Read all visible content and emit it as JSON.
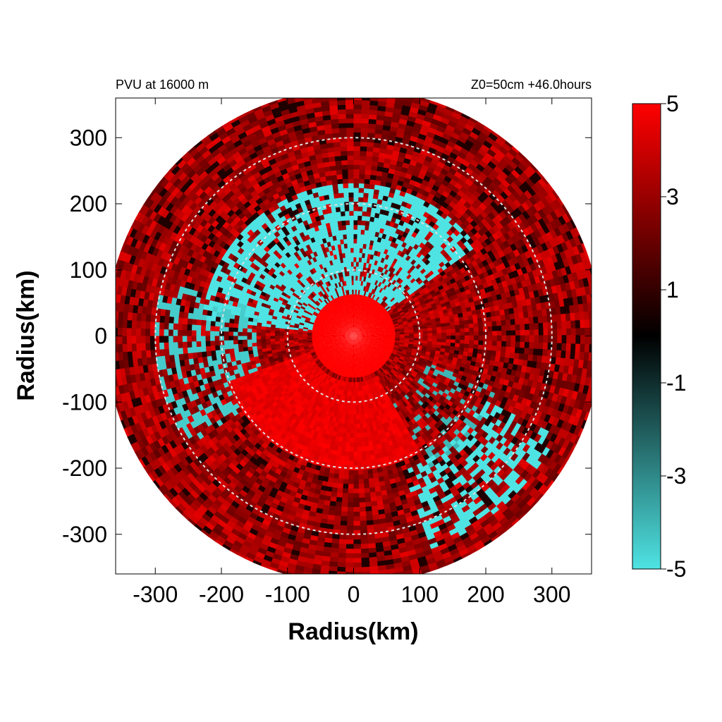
{
  "chart_data": {
    "type": "heatmap",
    "title": "PVU at 16000 m",
    "subtitle": "Z0=50cm  +46.0hours",
    "xlabel": "Radius(km)",
    "ylabel": "Radius(km)",
    "xlim": [
      -360,
      360
    ],
    "ylim": [
      -360,
      360
    ],
    "xticks": [
      "-300",
      "-200",
      "-100",
      "0",
      "100",
      "200",
      "300"
    ],
    "yticks": [
      "300",
      "200",
      "100",
      "0",
      "-100",
      "-200",
      "-300"
    ],
    "xtick_values": [
      -300,
      -200,
      -100,
      0,
      100,
      200,
      300
    ],
    "ytick_values": [
      300,
      200,
      100,
      0,
      -100,
      -200,
      -300
    ],
    "range_rings_km": [
      100,
      200,
      300
    ],
    "domain_radius_km": 375,
    "colorbar": {
      "min": -5,
      "max": 5,
      "ticks": [
        "5",
        "3",
        "1",
        "-1",
        "-3",
        "-5"
      ],
      "tick_values": [
        5,
        3,
        1,
        -1,
        -3,
        -5
      ],
      "colors": {
        "low": "#4fe3e3",
        "mid": "#000000",
        "high": "#ff0000"
      }
    },
    "pattern": {
      "description_regions": [
        {
          "region": "core 0-60 km",
          "value": 5
        },
        {
          "region": "north sector 60-230 km",
          "value": -5
        },
        {
          "region": "west sector 150-300 km",
          "value": -5
        },
        {
          "region": "southeast 220-340 km",
          "value": -5
        },
        {
          "region": "outer ring 280-375 km",
          "value": 3
        }
      ]
    }
  }
}
